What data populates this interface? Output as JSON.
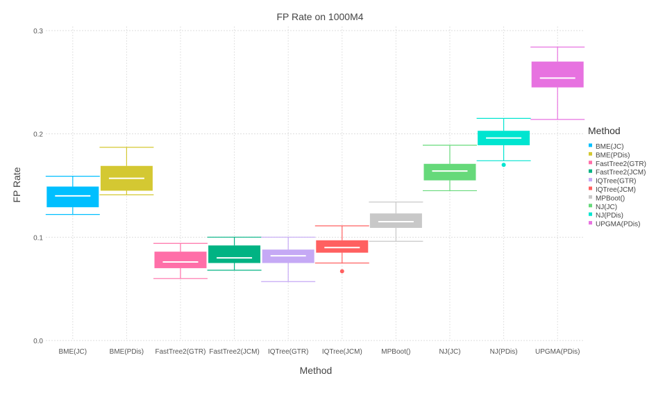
{
  "chart_data": {
    "type": "box",
    "title": "FP Rate on 1000M4",
    "xlabel": "Method",
    "ylabel": "FP Rate",
    "ylim": [
      0,
      0.3
    ],
    "yticks": [
      "0.0",
      "0.1",
      "0.2",
      "0.3"
    ],
    "grid": true,
    "legend": {
      "title": "Method",
      "position": "right"
    },
    "series": [
      {
        "name": "BME(JC)",
        "color": "#00BFFF",
        "min": 0.122,
        "q1": 0.129,
        "median": 0.14,
        "q3": 0.149,
        "max": 0.159,
        "outliers": []
      },
      {
        "name": "BME(PDis)",
        "color": "#D4C832",
        "min": 0.141,
        "q1": 0.145,
        "median": 0.157,
        "q3": 0.169,
        "max": 0.187,
        "outliers": []
      },
      {
        "name": "FastTree2(GTR)",
        "color": "#FF6FA8",
        "min": 0.06,
        "q1": 0.07,
        "median": 0.076,
        "q3": 0.086,
        "max": 0.094,
        "outliers": []
      },
      {
        "name": "FastTree2(JCM)",
        "color": "#00B383",
        "min": 0.068,
        "q1": 0.075,
        "median": 0.08,
        "q3": 0.092,
        "max": 0.1,
        "outliers": []
      },
      {
        "name": "IQTree(GTR)",
        "color": "#C5A9F5",
        "min": 0.057,
        "q1": 0.075,
        "median": 0.082,
        "q3": 0.088,
        "max": 0.1,
        "outliers": []
      },
      {
        "name": "IQTree(JCM)",
        "color": "#FF6060",
        "min": 0.075,
        "q1": 0.085,
        "median": 0.09,
        "q3": 0.097,
        "max": 0.111,
        "outliers": [
          0.067
        ]
      },
      {
        "name": "MPBoot()",
        "color": "#C8C8C8",
        "min": 0.096,
        "q1": 0.109,
        "median": 0.115,
        "q3": 0.123,
        "max": 0.134,
        "outliers": []
      },
      {
        "name": "NJ(JC)",
        "color": "#66D97A",
        "min": 0.145,
        "q1": 0.155,
        "median": 0.164,
        "q3": 0.171,
        "max": 0.189,
        "outliers": []
      },
      {
        "name": "NJ(PDis)",
        "color": "#00E5D0",
        "min": 0.174,
        "q1": 0.189,
        "median": 0.196,
        "q3": 0.203,
        "max": 0.215,
        "outliers": [
          0.17
        ]
      },
      {
        "name": "UPGMA(PDis)",
        "color": "#E772E0",
        "min": 0.214,
        "q1": 0.245,
        "median": 0.254,
        "q3": 0.27,
        "max": 0.284,
        "outliers": []
      }
    ]
  }
}
